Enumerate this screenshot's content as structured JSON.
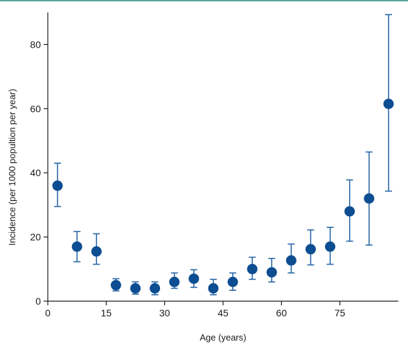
{
  "chart_data": {
    "type": "scatter",
    "title": "",
    "xlabel": "Age (years)",
    "ylabel": "Incidence (per 1000 popultion per year)",
    "xlim": [
      0,
      90
    ],
    "ylim": [
      0,
      90
    ],
    "xticks": [
      "0",
      "15",
      "30",
      "45",
      "60",
      "75"
    ],
    "yticks": [
      "0",
      "20",
      "40",
      "60",
      "80"
    ],
    "grid": false,
    "legend": "none",
    "marker_color": "#0d4d91",
    "errorbar_color": "#1f5fa3",
    "axis_color": "#1a1a1a",
    "series": [
      {
        "x": [
          2.5,
          7.5,
          12.5,
          17.5,
          22.5,
          27.5,
          32.5,
          37.5,
          42.5,
          47.5,
          52.5,
          57.5,
          62.5,
          67.5,
          72.5,
          77.5,
          82.5,
          87.5
        ],
        "y": [
          36,
          17,
          15.5,
          5,
          4,
          4,
          6,
          7,
          4,
          6,
          10,
          9,
          12.7,
          16.2,
          17,
          28,
          32,
          61.5
        ],
        "lower": [
          29.5,
          12.3,
          11.5,
          3.2,
          2.2,
          2,
          4,
          4.3,
          2,
          3.4,
          6.8,
          6,
          8.8,
          11.3,
          11.5,
          18.7,
          17.5,
          34.3
        ],
        "upper": [
          43,
          21.7,
          21,
          7,
          6,
          6,
          8.8,
          9.8,
          6.8,
          8.8,
          13.7,
          13.3,
          17.8,
          22.2,
          23,
          37.8,
          46.5,
          89.3
        ]
      }
    ]
  }
}
